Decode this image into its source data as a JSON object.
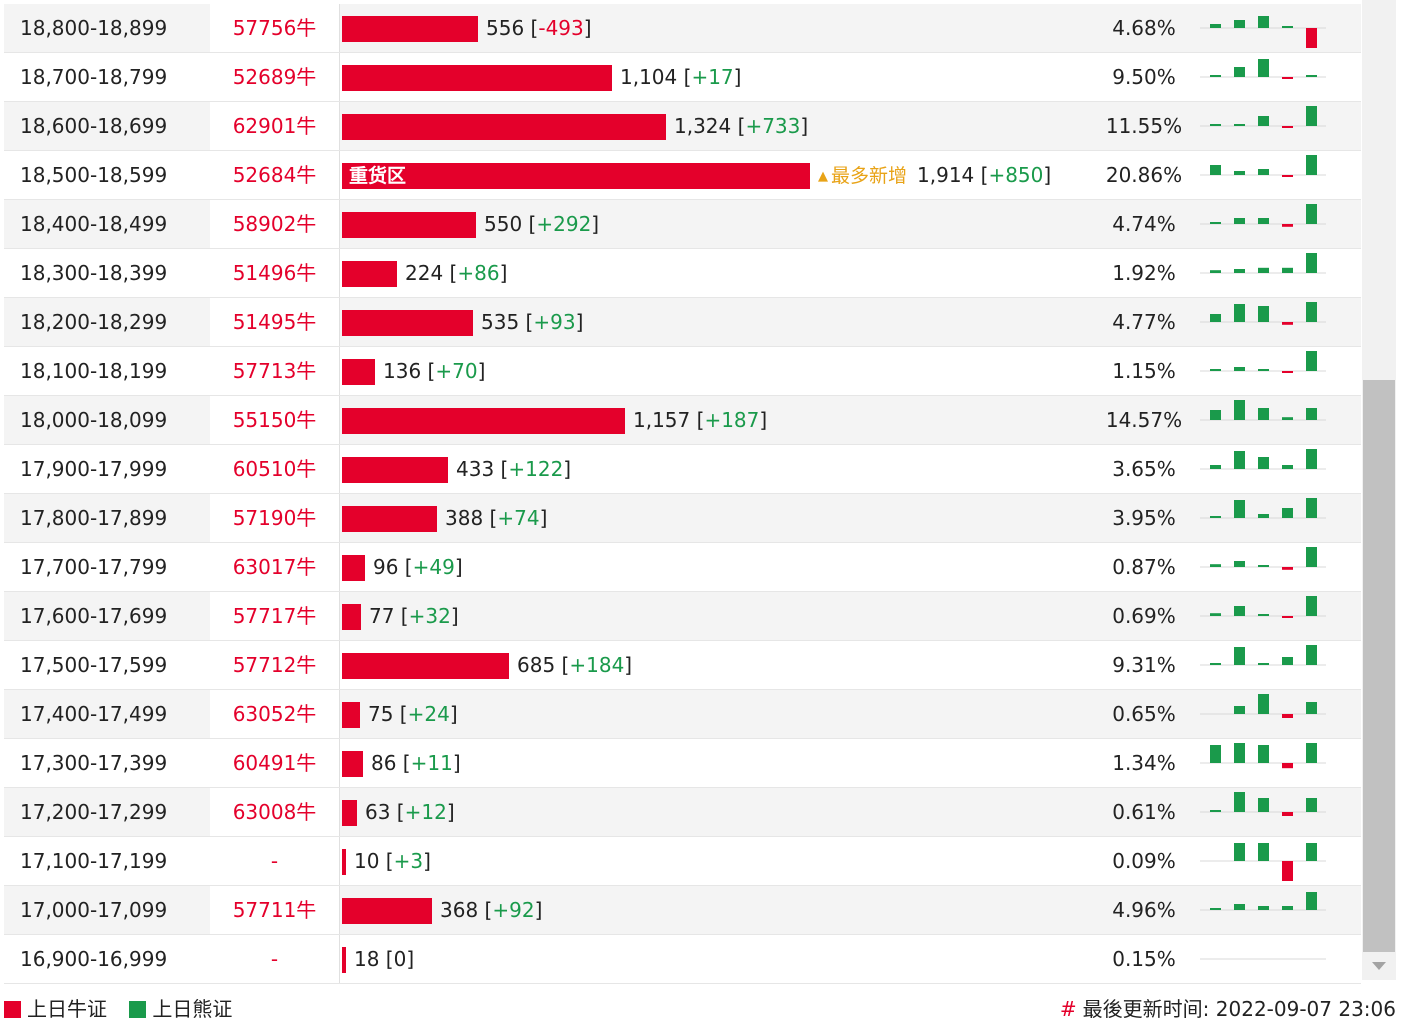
{
  "colors": {
    "bull": "#e4002b",
    "bear": "#1a9a4b",
    "hot": "#e8a317",
    "text": "#222222"
  },
  "rows": [
    {
      "range": "18,800-18,899",
      "code": "57756牛",
      "value": 556,
      "value_text": "556",
      "change": "-493",
      "pct": "4.68%",
      "spark": [
        1,
        2,
        3,
        0.5,
        -5
      ]
    },
    {
      "range": "18,700-18,799",
      "code": "52689牛",
      "value": 1104,
      "value_text": "1,104",
      "change": "+17",
      "pct": "9.50%",
      "spark": [
        0.5,
        2.5,
        4.5,
        -0.5,
        0.3
      ]
    },
    {
      "range": "18,600-18,699",
      "code": "62901牛",
      "value": 1324,
      "value_text": "1,324",
      "change": "+733",
      "pct": "11.55%",
      "spark": [
        0.3,
        0.5,
        2.5,
        -0.5,
        5
      ]
    },
    {
      "range": "18,500-18,599",
      "code": "52684牛",
      "value": 1914,
      "value_text": "1,914",
      "change": "+850",
      "pct": "20.86%",
      "spark": [
        2.5,
        1,
        1.5,
        -0.3,
        5
      ],
      "bar_label": "重货区",
      "hot_label": "最多新增"
    },
    {
      "range": "18,400-18,499",
      "code": "58902牛",
      "value": 550,
      "value_text": "550",
      "change": "+292",
      "pct": "4.74%",
      "spark": [
        0.3,
        1.5,
        1.5,
        -0.7,
        5
      ]
    },
    {
      "range": "18,300-18,399",
      "code": "51496牛",
      "value": 224,
      "value_text": "224",
      "change": "+86",
      "pct": "1.92%",
      "spark": [
        0.7,
        1,
        1.3,
        1.3,
        5
      ]
    },
    {
      "range": "18,200-18,299",
      "code": "51495牛",
      "value": 535,
      "value_text": "535",
      "change": "+93",
      "pct": "4.77%",
      "spark": [
        2,
        4.5,
        4,
        -0.7,
        5
      ]
    },
    {
      "range": "18,100-18,199",
      "code": "57713牛",
      "value": 136,
      "value_text": "136",
      "change": "+70",
      "pct": "1.15%",
      "spark": [
        0.3,
        1,
        0.3,
        -0.3,
        5
      ]
    },
    {
      "range": "18,000-18,099",
      "code": "55150牛",
      "value": 1157,
      "value_text": "1,157",
      "change": "+187",
      "pct": "14.57%",
      "spark": [
        2.5,
        5,
        3,
        0.7,
        3
      ]
    },
    {
      "range": "17,900-17,999",
      "code": "60510牛",
      "value": 433,
      "value_text": "433",
      "change": "+122",
      "pct": "3.65%",
      "spark": [
        1,
        4.5,
        3,
        1,
        5
      ]
    },
    {
      "range": "17,800-17,899",
      "code": "57190牛",
      "value": 388,
      "value_text": "388",
      "change": "+74",
      "pct": "3.95%",
      "spark": [
        0.3,
        4.5,
        1,
        2.5,
        5
      ]
    },
    {
      "range": "17,700-17,799",
      "code": "63017牛",
      "value": 96,
      "value_text": "96",
      "change": "+49",
      "pct": "0.87%",
      "spark": [
        0.7,
        1.5,
        0.5,
        -0.7,
        5
      ]
    },
    {
      "range": "17,600-17,699",
      "code": "57717牛",
      "value": 77,
      "value_text": "77",
      "change": "+32",
      "pct": "0.69%",
      "spark": [
        0.7,
        2.5,
        0.3,
        -0.5,
        5
      ]
    },
    {
      "range": "17,500-17,599",
      "code": "57712牛",
      "value": 685,
      "value_text": "685",
      "change": "+184",
      "pct": "9.31%",
      "spark": [
        0.3,
        4.5,
        0.5,
        2,
        5
      ]
    },
    {
      "range": "17,400-17,499",
      "code": "63052牛",
      "value": 75,
      "value_text": "75",
      "change": "+24",
      "pct": "0.65%",
      "spark": [
        0,
        2,
        5,
        -1,
        3
      ]
    },
    {
      "range": "17,300-17,399",
      "code": "60491牛",
      "value": 86,
      "value_text": "86",
      "change": "+11",
      "pct": "1.34%",
      "spark": [
        4.5,
        5,
        4.5,
        -1.3,
        5
      ]
    },
    {
      "range": "17,200-17,299",
      "code": "63008牛",
      "value": 63,
      "value_text": "63",
      "change": "+12",
      "pct": "0.61%",
      "spark": [
        0.5,
        5,
        3.5,
        -1,
        3.5
      ]
    },
    {
      "range": "17,100-17,199",
      "code": "-",
      "value": 10,
      "value_text": "10",
      "change": "+3",
      "pct": "0.09%",
      "spark": [
        0,
        4.5,
        4.5,
        -5,
        4.5
      ]
    },
    {
      "range": "17,000-17,099",
      "code": "57711牛",
      "value": 368,
      "value_text": "368",
      "change": "+92",
      "pct": "4.96%",
      "spark": [
        0.3,
        1.5,
        1,
        1,
        4.5
      ]
    },
    {
      "range": "16,900-16,999",
      "code": "-",
      "value": 18,
      "value_text": "18",
      "change": "0",
      "pct": "0.15%",
      "spark": [
        0,
        0,
        0,
        0,
        0
      ]
    }
  ],
  "legend": {
    "bull_label": "上日牛证",
    "bear_label": "上日熊证"
  },
  "footer": {
    "hash": "#",
    "updated_label": "最後更新时间:",
    "updated_time": "2022-09-07 23:06"
  }
}
